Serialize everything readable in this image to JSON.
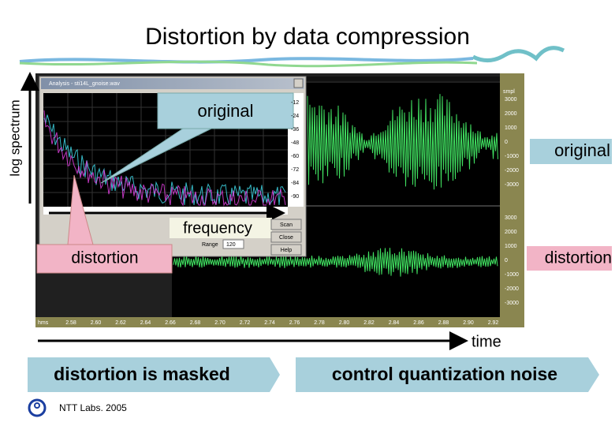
{
  "header": {
    "title": "Distortion by data compression"
  },
  "labels": {
    "y_axis": "log spectrum",
    "x_axis": "frequency",
    "time_axis": "time",
    "callout_original": "original",
    "callout_distortion": "distortion",
    "track_original": "original",
    "track_distortion": "distortion"
  },
  "screenshot": {
    "window_title": "Analysis - sti14L_gnoise.wav",
    "db_ticks": [
      "-12",
      "-24",
      "-36",
      "-48",
      "-60",
      "-72",
      "-84",
      "-90"
    ],
    "wave_unit": "smpl",
    "wave_ticks": [
      "3000",
      "2000",
      "1000",
      "0",
      "-1000",
      "-2000",
      "-3000"
    ],
    "time_unit": "hms",
    "time_ticks": [
      "2.58",
      "2.60",
      "2.62",
      "2.64",
      "2.66",
      "2.68",
      "2.70",
      "2.72",
      "2.74",
      "2.76",
      "2.78",
      "2.80",
      "2.82",
      "2.84",
      "2.86",
      "2.88",
      "2.90",
      "2.92"
    ],
    "buttons": [
      "Scan",
      "Close",
      "Help"
    ],
    "range_label": "Range",
    "range_value": "120"
  },
  "bottom": {
    "left": "distortion is masked",
    "right": "control quantization noise"
  },
  "footer": {
    "credit": "NTT Labs. 2005"
  }
}
